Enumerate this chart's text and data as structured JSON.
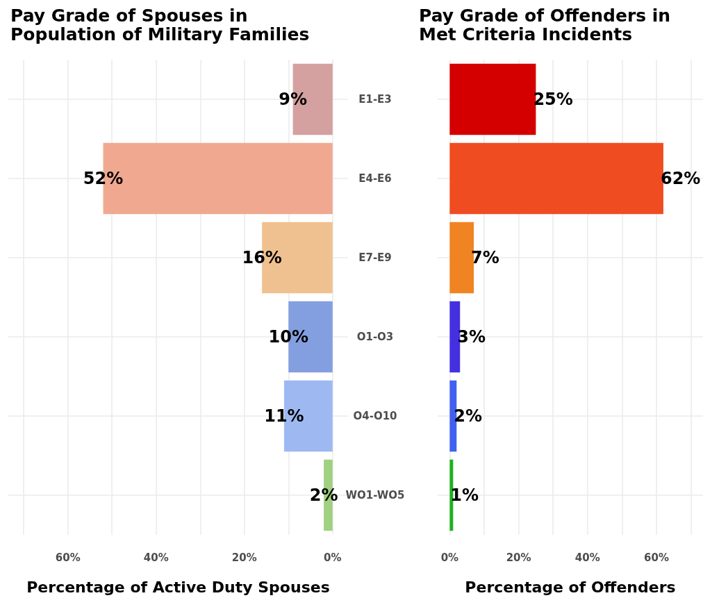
{
  "chart_data": [
    {
      "type": "bar",
      "orientation": "horizontal",
      "title": "Pay Grade of Spouses in\nPopulation of Military Families",
      "xlabel": "Percentage of Active Duty Spouses",
      "categories": [
        "E1-E3",
        "E4-E6",
        "E7-E9",
        "O1-O3",
        "O4-O10",
        "WO1-WO5"
      ],
      "values": [
        9,
        52,
        16,
        10,
        11,
        2
      ],
      "value_labels": [
        "9%",
        "52%",
        "16%",
        "10%",
        "11%",
        "2%"
      ],
      "colors": [
        "#d4a0a0",
        "#f0a990",
        "#f0c190",
        "#849fe0",
        "#9eb9f2",
        "#a0d080"
      ],
      "xlim": [
        73.5,
        -3.5
      ],
      "xticks": [
        {
          "value": 70,
          "label": null
        },
        {
          "value": 60,
          "label": "60%"
        },
        {
          "value": 50,
          "label": null
        },
        {
          "value": 40,
          "label": "40%"
        },
        {
          "value": 30,
          "label": null
        },
        {
          "value": 20,
          "label": "20%"
        },
        {
          "value": 10,
          "label": null
        },
        {
          "value": 0,
          "label": "0%"
        }
      ],
      "grid": true
    },
    {
      "type": "bar",
      "orientation": "horizontal",
      "title": "Pay Grade of Offenders in\nMet Criteria Incidents",
      "xlabel": "Percentage of Offenders",
      "categories": [
        null,
        null,
        null,
        null,
        null,
        null
      ],
      "values": [
        25,
        62,
        7,
        3,
        2,
        1
      ],
      "value_labels": [
        "25%",
        "62%",
        "7%",
        "3%",
        "2%",
        "1%"
      ],
      "colors": [
        "#d40000",
        "#f04c22",
        "#f08422",
        "#4430e0",
        "#4060f0",
        "#20b020"
      ],
      "xlim": [
        -3.5,
        73.5
      ],
      "xticks": [
        {
          "value": 0,
          "label": "0%"
        },
        {
          "value": 10,
          "label": null
        },
        {
          "value": 20,
          "label": "20%"
        },
        {
          "value": 30,
          "label": null
        },
        {
          "value": 40,
          "label": "40%"
        },
        {
          "value": 50,
          "label": null
        },
        {
          "value": 60,
          "label": "60%"
        },
        {
          "value": 70,
          "label": null
        }
      ],
      "grid": true
    }
  ]
}
